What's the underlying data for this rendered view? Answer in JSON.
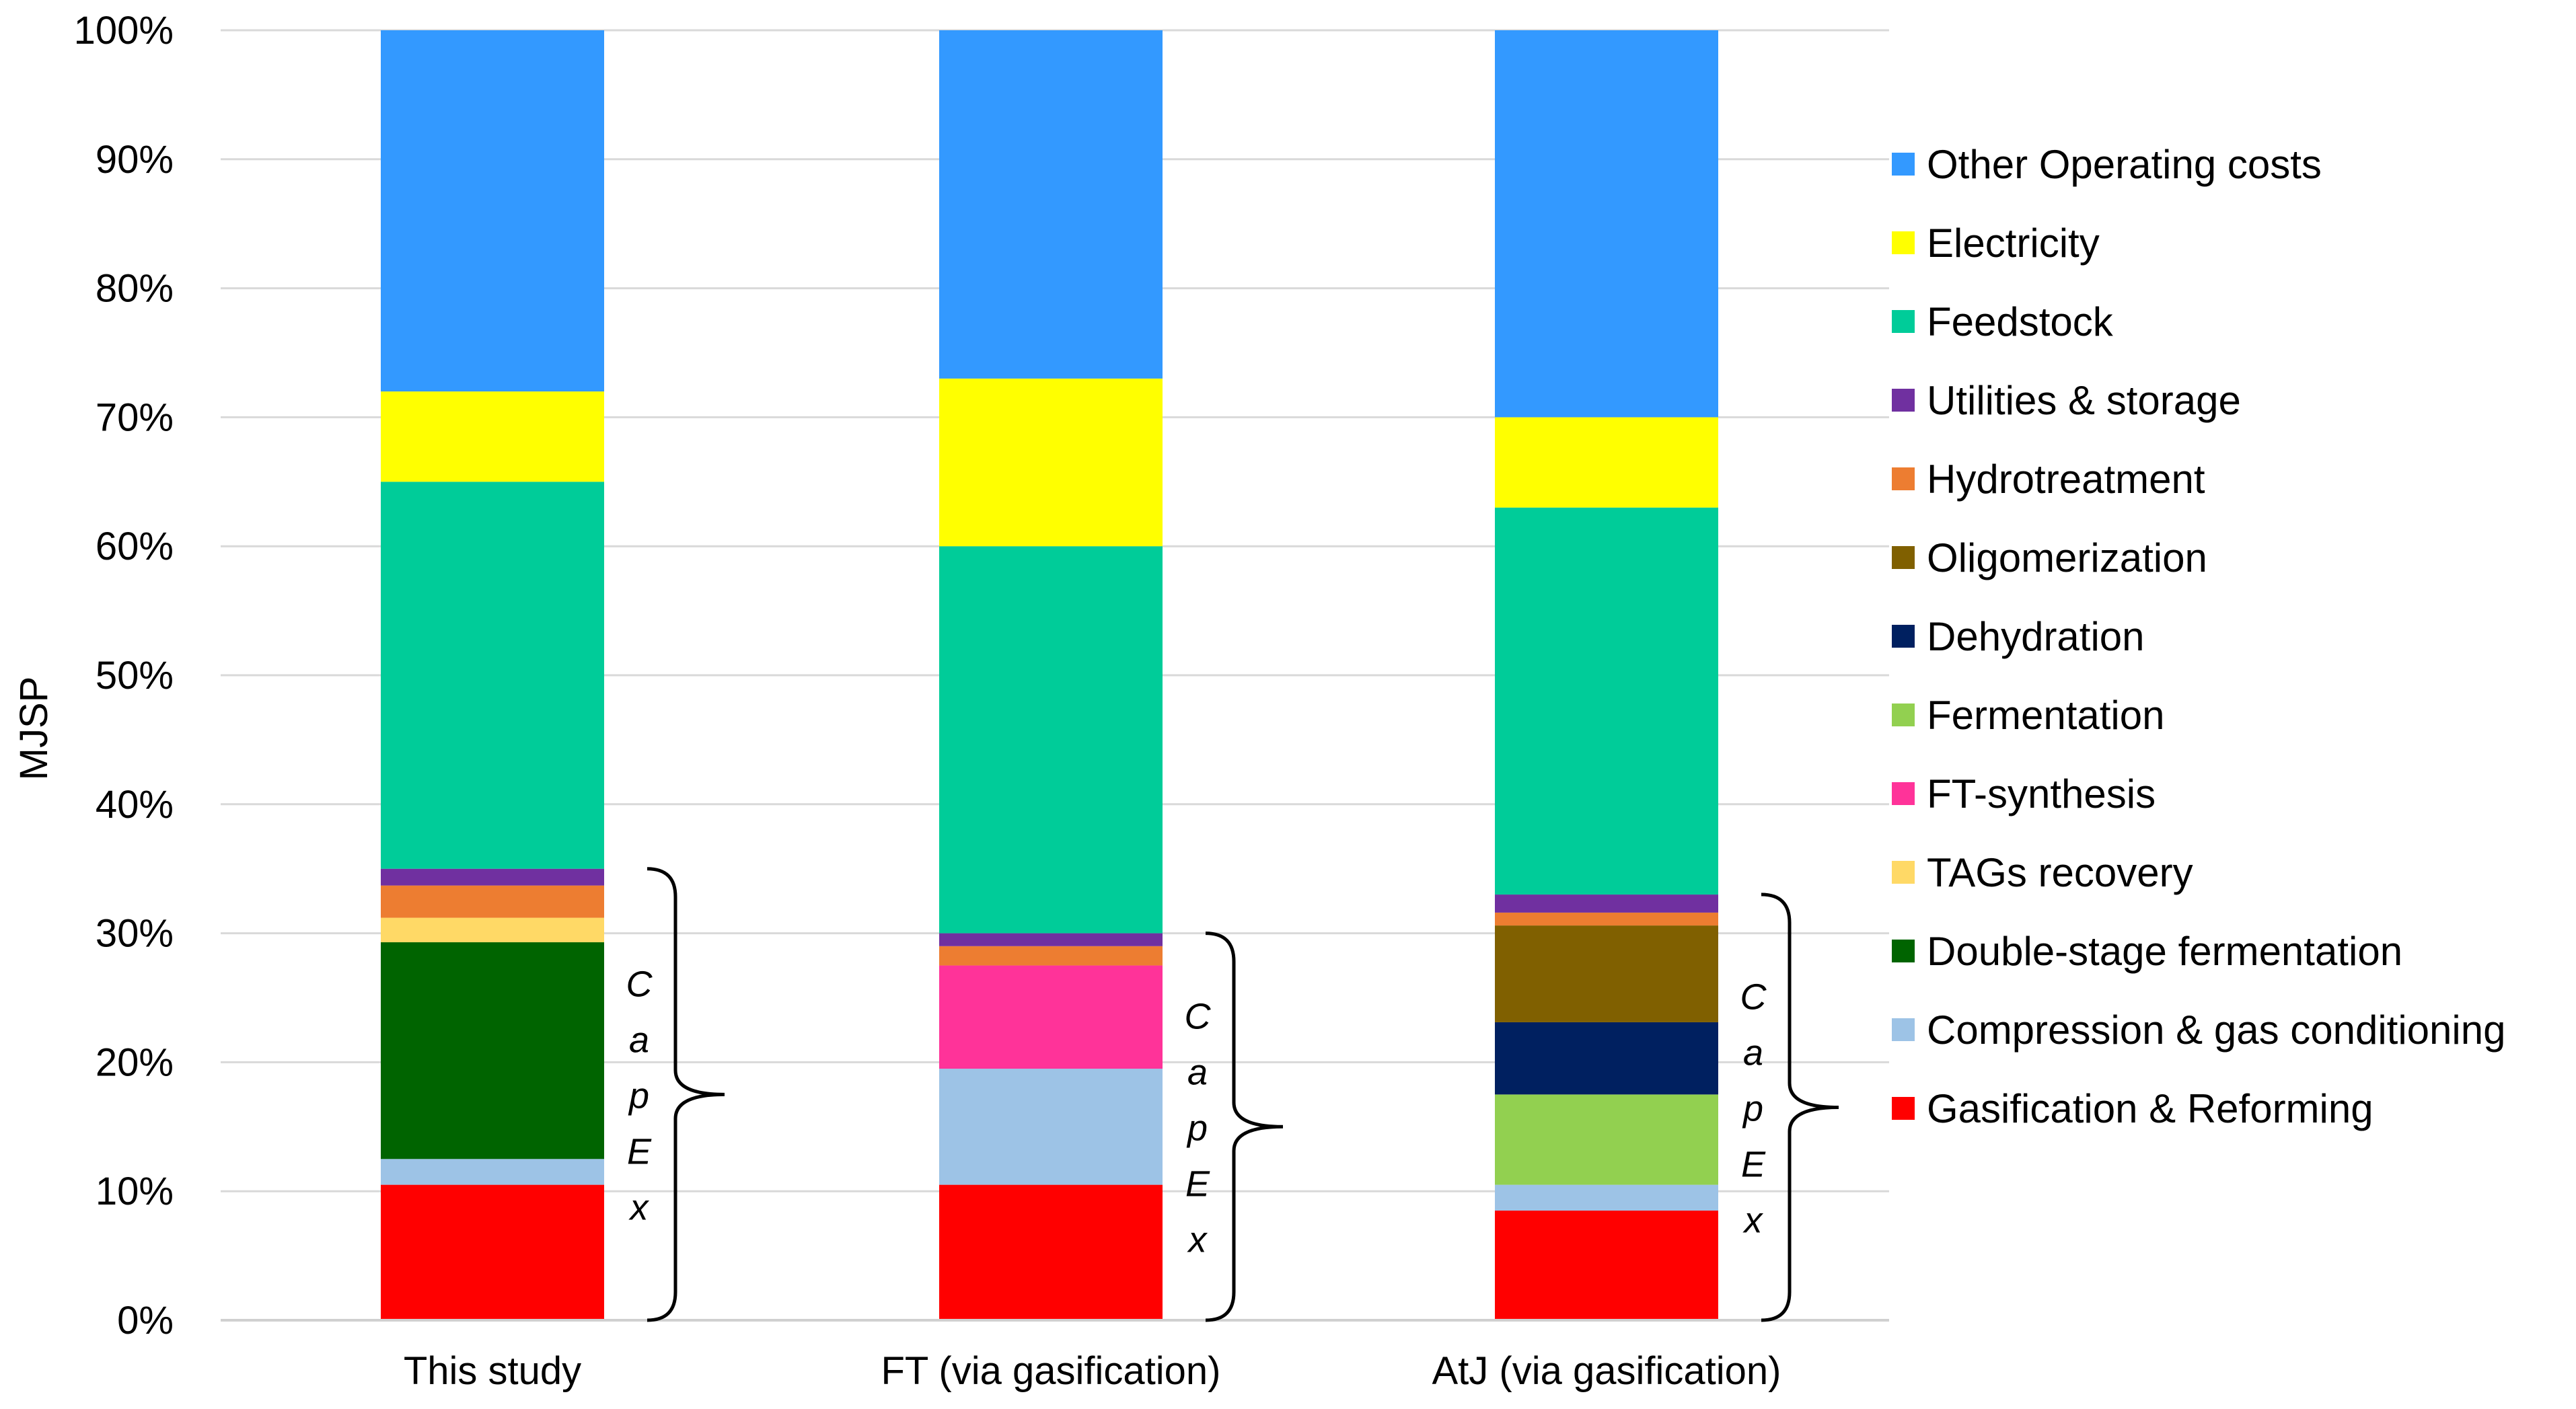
{
  "chart_data": {
    "type": "bar",
    "stacked": true,
    "title": "",
    "xlabel": "",
    "ylabel": "MJSP",
    "ylim": [
      0,
      100
    ],
    "y_ticks": [
      "0%",
      "10%",
      "20%",
      "30%",
      "40%",
      "50%",
      "60%",
      "70%",
      "80%",
      "90%",
      "100%"
    ],
    "grid": true,
    "legend_position": "right",
    "categories": [
      "This study",
      "FT (via gasification)",
      "AtJ (via gasification)"
    ],
    "series": [
      {
        "name": "Gasification & Reforming",
        "color": "#FF0000",
        "values": [
          10.5,
          10.5,
          8.5
        ]
      },
      {
        "name": "Compression & gas conditioning",
        "color": "#9DC3E6",
        "values": [
          2.0,
          9.0,
          2.0
        ]
      },
      {
        "name": "Double-stage fermentation",
        "color": "#006400",
        "values": [
          16.8,
          0,
          0
        ]
      },
      {
        "name": "TAGs recovery",
        "color": "#FFD966",
        "values": [
          1.9,
          0,
          0
        ]
      },
      {
        "name": "FT-synthesis",
        "color": "#FF3399",
        "values": [
          0,
          8.0,
          0
        ]
      },
      {
        "name": "Fermentation",
        "color": "#92D050",
        "values": [
          0,
          0,
          7.0
        ]
      },
      {
        "name": "Dehydration",
        "color": "#002060",
        "values": [
          0,
          0,
          5.6
        ]
      },
      {
        "name": "Oligomerization",
        "color": "#806000",
        "values": [
          0,
          0,
          7.5
        ]
      },
      {
        "name": "Hydrotreatment",
        "color": "#ED7D31",
        "values": [
          2.5,
          1.5,
          1.0
        ]
      },
      {
        "name": "Utilities & storage",
        "color": "#7030A0",
        "values": [
          1.3,
          1.0,
          1.4
        ]
      },
      {
        "name": "Feedstock",
        "color": "#00CC99",
        "values": [
          30.0,
          30.0,
          30.0
        ]
      },
      {
        "name": "Electricity",
        "color": "#FFFF00",
        "values": [
          7.0,
          13.0,
          7.0
        ]
      },
      {
        "name": "Other Operating costs",
        "color": "#3399FF",
        "values": [
          28.0,
          27.0,
          30.0
        ]
      }
    ],
    "legend_order": [
      "Other Operating costs",
      "Electricity",
      "Feedstock",
      "Utilities & storage",
      "Hydrotreatment",
      "Oligomerization",
      "Dehydration",
      "Fermentation",
      "FT-synthesis",
      "TAGs recovery",
      "Double-stage fermentation",
      "Compression & gas conditioning",
      "Gasification & Reforming"
    ],
    "annotations": [
      {
        "text": "CapEx",
        "letters": [
          "C",
          "a",
          "p",
          "E",
          "x"
        ],
        "category": "This study",
        "from": 0,
        "to": 35
      },
      {
        "text": "CapEx",
        "letters": [
          "C",
          "a",
          "p",
          "E",
          "x"
        ],
        "category": "FT (via gasification)",
        "from": 0,
        "to": 30
      },
      {
        "text": "CapEx",
        "letters": [
          "C",
          "a",
          "p",
          "E",
          "x"
        ],
        "category": "AtJ (via gasification)",
        "from": 0,
        "to": 33
      }
    ]
  }
}
